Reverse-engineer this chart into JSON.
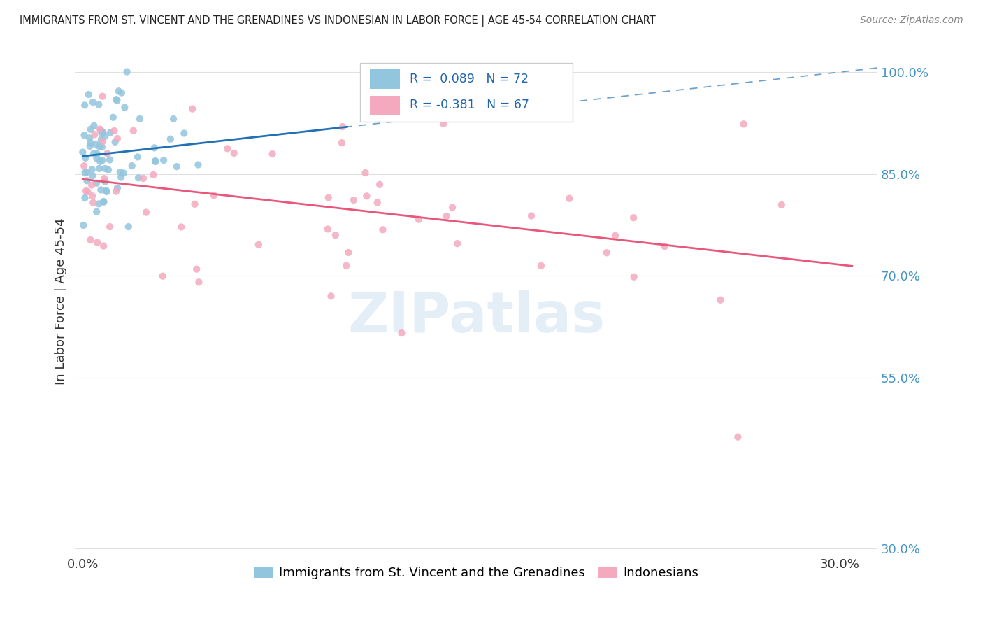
{
  "title": "IMMIGRANTS FROM ST. VINCENT AND THE GRENADINES VS INDONESIAN IN LABOR FORCE | AGE 45-54 CORRELATION CHART",
  "source": "Source: ZipAtlas.com",
  "ylabel": "In Labor Force | Age 45-54",
  "xlim": [
    -0.003,
    0.315
  ],
  "ylim": [
    0.29,
    1.035
  ],
  "yticks": [
    0.3,
    0.55,
    0.7,
    0.85,
    1.0
  ],
  "ytick_labels": [
    "30.0%",
    "55.0%",
    "70.0%",
    "85.0%",
    "100.0%"
  ],
  "xticks": [
    0.0,
    0.3
  ],
  "xtick_labels": [
    "0.0%",
    "30.0%"
  ],
  "blue_R": 0.089,
  "blue_N": 72,
  "pink_R": -0.381,
  "pink_N": 67,
  "legend_label_blue": "Immigrants from St. Vincent and the Grenadines",
  "legend_label_pink": "Indonesians",
  "blue_color": "#92c5de",
  "pink_color": "#f4a9bf",
  "blue_line_color": "#2171b5",
  "pink_line_color": "#e8567a",
  "watermark": "ZIPatlas",
  "watermark_color": "#c8dff0",
  "grid_color": "#e0e0e0",
  "title_color": "#222222",
  "source_color": "#888888",
  "ytick_color": "#4393c3",
  "legend_box_color": "#cccccc",
  "legend_text_color": "#2166ac"
}
